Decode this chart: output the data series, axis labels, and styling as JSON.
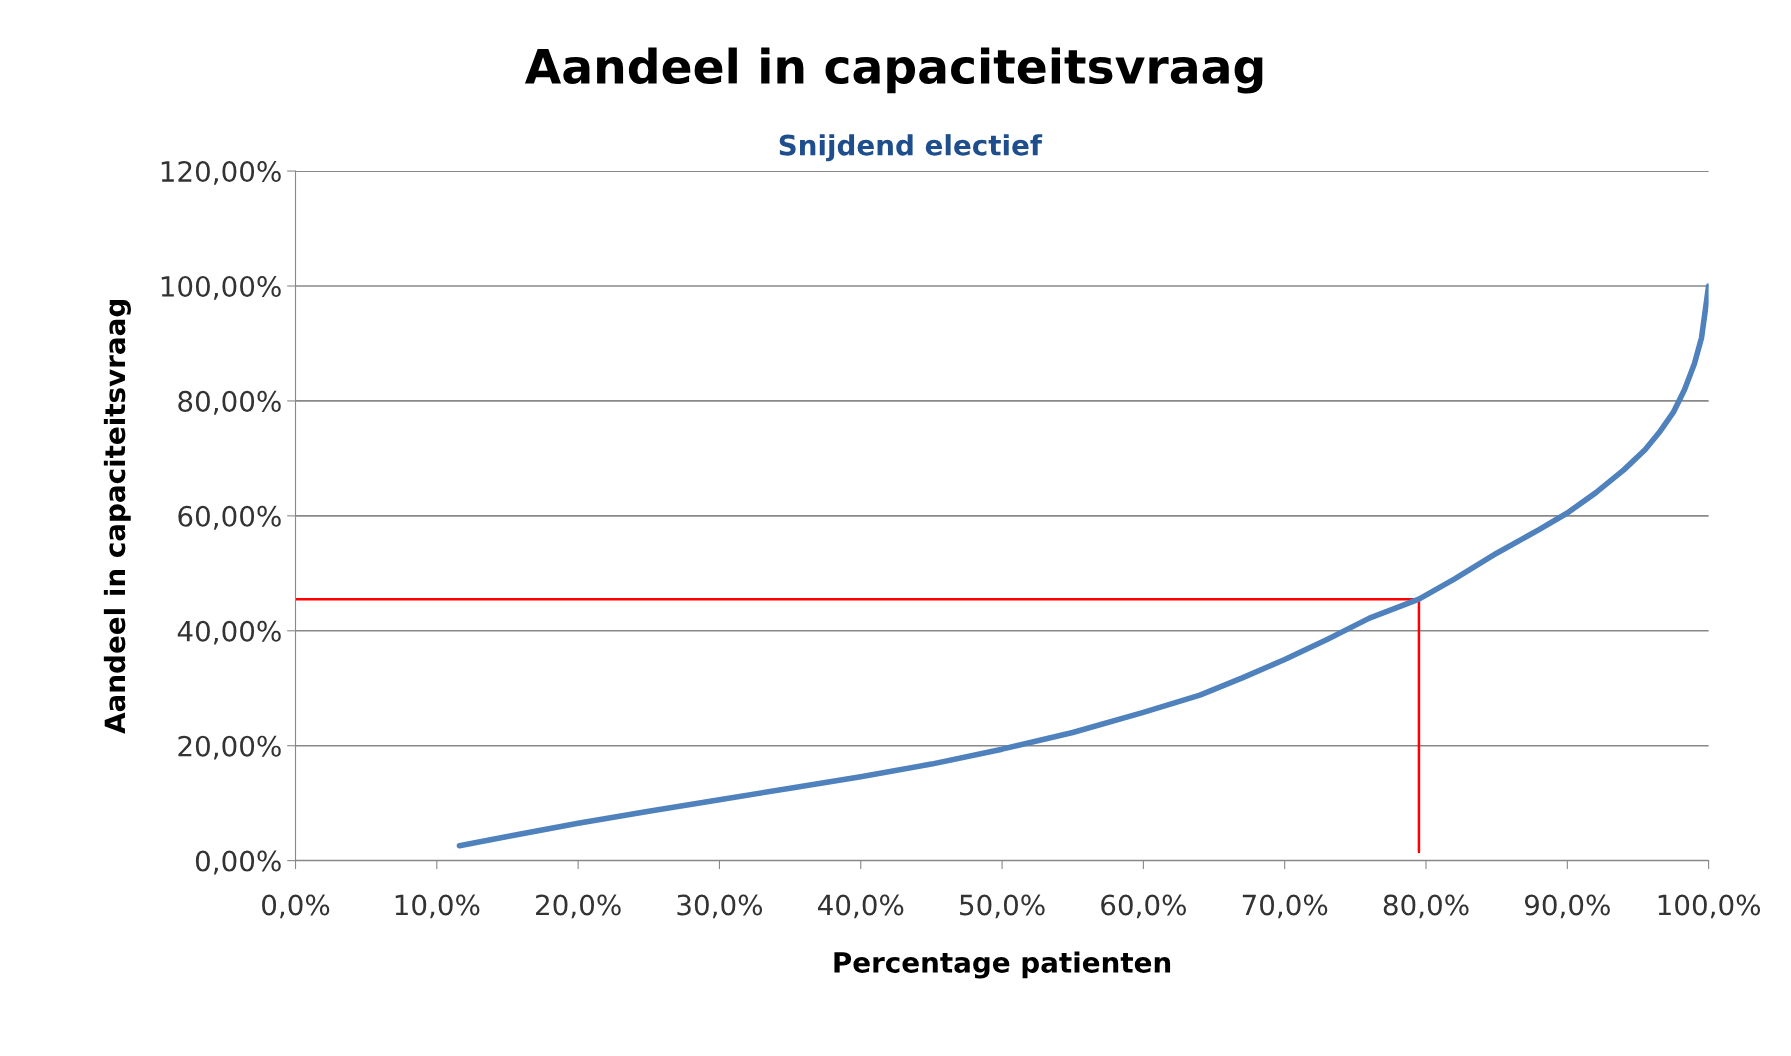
{
  "chart_data": {
    "type": "line",
    "title": "Aandeel in capaciteitsvraag",
    "subtitle": "Snijdend electief",
    "xlabel": "Percentage patienten",
    "ylabel": "Aandeel in capaciteitsvraag",
    "series": [
      {
        "color": "#4f81bd",
        "x": [
          11.6,
          15,
          20,
          25,
          30,
          35,
          40,
          45,
          50,
          55,
          60,
          64,
          67,
          70,
          73,
          76,
          79.5,
          82,
          85,
          88,
          90,
          92,
          94,
          95.5,
          96.5,
          97.5,
          98.3,
          99,
          99.5,
          100
        ],
        "values": [
          2.6,
          4.2,
          6.5,
          8.6,
          10.6,
          12.6,
          14.6,
          16.8,
          19.4,
          22.3,
          25.8,
          28.8,
          31.8,
          35,
          38.5,
          42.2,
          45.5,
          49,
          53.5,
          57.6,
          60.5,
          64,
          68,
          71.5,
          74.5,
          78,
          82,
          86.5,
          91,
          100
        ]
      },
      {
        "color": "#ff0000",
        "x": [
          0,
          79.5,
          79.5
        ],
        "values": [
          45.5,
          45.5,
          1.5
        ]
      }
    ],
    "xlim": [
      0,
      100
    ],
    "ylim": [
      0,
      120
    ],
    "xticks": [
      {
        "value": 0,
        "label": "0,0%"
      },
      {
        "value": 10,
        "label": "10,0%"
      },
      {
        "value": 20,
        "label": "20,0%"
      },
      {
        "value": 30,
        "label": "30,0%"
      },
      {
        "value": 40,
        "label": "40,0%"
      },
      {
        "value": 50,
        "label": "50,0%"
      },
      {
        "value": 60,
        "label": "60,0%"
      },
      {
        "value": 70,
        "label": "70,0%"
      },
      {
        "value": 80,
        "label": "80,0%"
      },
      {
        "value": 90,
        "label": "90,0%"
      },
      {
        "value": 100,
        "label": "100,0%"
      }
    ],
    "yticks": [
      {
        "value": 0,
        "label": "0,00%"
      },
      {
        "value": 20,
        "label": "20,00%"
      },
      {
        "value": 40,
        "label": "40,00%"
      },
      {
        "value": 60,
        "label": "60,00%"
      },
      {
        "value": 80,
        "label": "80,00%"
      },
      {
        "value": 100,
        "label": "100,00%"
      },
      {
        "value": 120,
        "label": "120,00%"
      }
    ],
    "grid": "y",
    "marker": "none",
    "line_style": "solid"
  }
}
